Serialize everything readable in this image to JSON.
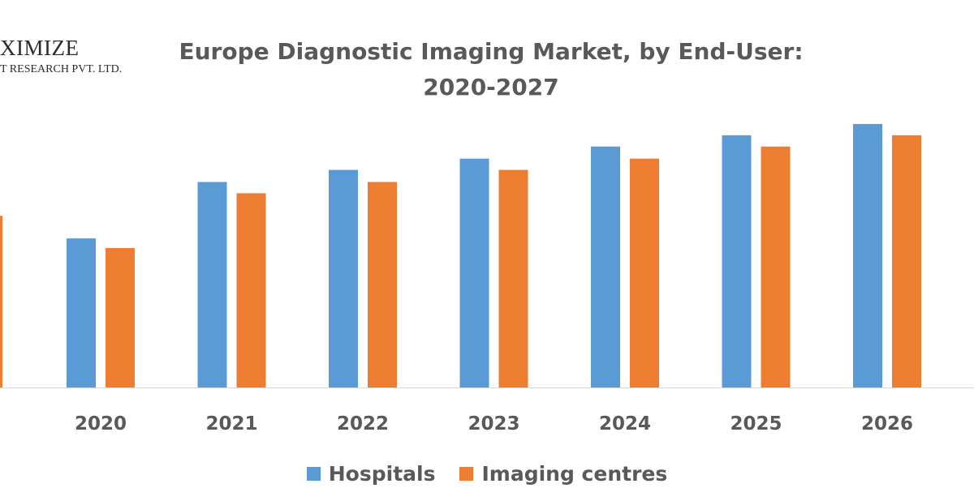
{
  "logo": {
    "main": "XIMIZE",
    "sub": "T RESEARCH PVT. LTD."
  },
  "chart_data": {
    "type": "bar",
    "title": "Europe Diagnostic Imaging Market, by End-User:",
    "subtitle": "2020-2027",
    "categories": [
      "2020",
      "2021",
      "2022",
      "2023",
      "2024",
      "2025",
      "2026"
    ],
    "series": [
      {
        "name": "Hospitals",
        "color": "#5b9bd5",
        "values": [
          185,
          255,
          270,
          284,
          299,
          313,
          327
        ]
      },
      {
        "name": "Imaging centres",
        "color": "#ed7d31",
        "values": [
          173,
          241,
          255,
          270,
          284,
          299,
          313
        ]
      }
    ],
    "partial_series": {
      "name": "Imaging centres",
      "color": "#ed7d31",
      "value": 213
    },
    "ylim": [
      0,
      340
    ],
    "grid": false,
    "legend_position": "bottom"
  }
}
